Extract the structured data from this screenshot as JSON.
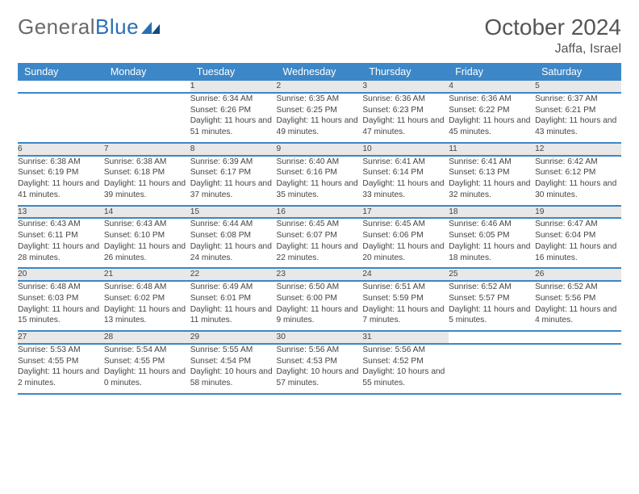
{
  "brand": {
    "part1": "General",
    "part2": "Blue"
  },
  "title": "October 2024",
  "location": "Jaffa, Israel",
  "colors": {
    "header_bg": "#3c87c7",
    "header_text": "#ffffff",
    "daynum_bg": "#e8e8e8",
    "rule": "#3c87c7",
    "brand_gray": "#6a6a6a",
    "brand_blue": "#2a6fb5"
  },
  "weekdays": [
    "Sunday",
    "Monday",
    "Tuesday",
    "Wednesday",
    "Thursday",
    "Friday",
    "Saturday"
  ],
  "weeks": [
    {
      "days": [
        {
          "n": "",
          "sunrise": "",
          "sunset": "",
          "daylight": ""
        },
        {
          "n": "",
          "sunrise": "",
          "sunset": "",
          "daylight": ""
        },
        {
          "n": "1",
          "sunrise": "Sunrise: 6:34 AM",
          "sunset": "Sunset: 6:26 PM",
          "daylight": "Daylight: 11 hours and 51 minutes."
        },
        {
          "n": "2",
          "sunrise": "Sunrise: 6:35 AM",
          "sunset": "Sunset: 6:25 PM",
          "daylight": "Daylight: 11 hours and 49 minutes."
        },
        {
          "n": "3",
          "sunrise": "Sunrise: 6:36 AM",
          "sunset": "Sunset: 6:23 PM",
          "daylight": "Daylight: 11 hours and 47 minutes."
        },
        {
          "n": "4",
          "sunrise": "Sunrise: 6:36 AM",
          "sunset": "Sunset: 6:22 PM",
          "daylight": "Daylight: 11 hours and 45 minutes."
        },
        {
          "n": "5",
          "sunrise": "Sunrise: 6:37 AM",
          "sunset": "Sunset: 6:21 PM",
          "daylight": "Daylight: 11 hours and 43 minutes."
        }
      ]
    },
    {
      "days": [
        {
          "n": "6",
          "sunrise": "Sunrise: 6:38 AM",
          "sunset": "Sunset: 6:19 PM",
          "daylight": "Daylight: 11 hours and 41 minutes."
        },
        {
          "n": "7",
          "sunrise": "Sunrise: 6:38 AM",
          "sunset": "Sunset: 6:18 PM",
          "daylight": "Daylight: 11 hours and 39 minutes."
        },
        {
          "n": "8",
          "sunrise": "Sunrise: 6:39 AM",
          "sunset": "Sunset: 6:17 PM",
          "daylight": "Daylight: 11 hours and 37 minutes."
        },
        {
          "n": "9",
          "sunrise": "Sunrise: 6:40 AM",
          "sunset": "Sunset: 6:16 PM",
          "daylight": "Daylight: 11 hours and 35 minutes."
        },
        {
          "n": "10",
          "sunrise": "Sunrise: 6:41 AM",
          "sunset": "Sunset: 6:14 PM",
          "daylight": "Daylight: 11 hours and 33 minutes."
        },
        {
          "n": "11",
          "sunrise": "Sunrise: 6:41 AM",
          "sunset": "Sunset: 6:13 PM",
          "daylight": "Daylight: 11 hours and 32 minutes."
        },
        {
          "n": "12",
          "sunrise": "Sunrise: 6:42 AM",
          "sunset": "Sunset: 6:12 PM",
          "daylight": "Daylight: 11 hours and 30 minutes."
        }
      ]
    },
    {
      "days": [
        {
          "n": "13",
          "sunrise": "Sunrise: 6:43 AM",
          "sunset": "Sunset: 6:11 PM",
          "daylight": "Daylight: 11 hours and 28 minutes."
        },
        {
          "n": "14",
          "sunrise": "Sunrise: 6:43 AM",
          "sunset": "Sunset: 6:10 PM",
          "daylight": "Daylight: 11 hours and 26 minutes."
        },
        {
          "n": "15",
          "sunrise": "Sunrise: 6:44 AM",
          "sunset": "Sunset: 6:08 PM",
          "daylight": "Daylight: 11 hours and 24 minutes."
        },
        {
          "n": "16",
          "sunrise": "Sunrise: 6:45 AM",
          "sunset": "Sunset: 6:07 PM",
          "daylight": "Daylight: 11 hours and 22 minutes."
        },
        {
          "n": "17",
          "sunrise": "Sunrise: 6:45 AM",
          "sunset": "Sunset: 6:06 PM",
          "daylight": "Daylight: 11 hours and 20 minutes."
        },
        {
          "n": "18",
          "sunrise": "Sunrise: 6:46 AM",
          "sunset": "Sunset: 6:05 PM",
          "daylight": "Daylight: 11 hours and 18 minutes."
        },
        {
          "n": "19",
          "sunrise": "Sunrise: 6:47 AM",
          "sunset": "Sunset: 6:04 PM",
          "daylight": "Daylight: 11 hours and 16 minutes."
        }
      ]
    },
    {
      "days": [
        {
          "n": "20",
          "sunrise": "Sunrise: 6:48 AM",
          "sunset": "Sunset: 6:03 PM",
          "daylight": "Daylight: 11 hours and 15 minutes."
        },
        {
          "n": "21",
          "sunrise": "Sunrise: 6:48 AM",
          "sunset": "Sunset: 6:02 PM",
          "daylight": "Daylight: 11 hours and 13 minutes."
        },
        {
          "n": "22",
          "sunrise": "Sunrise: 6:49 AM",
          "sunset": "Sunset: 6:01 PM",
          "daylight": "Daylight: 11 hours and 11 minutes."
        },
        {
          "n": "23",
          "sunrise": "Sunrise: 6:50 AM",
          "sunset": "Sunset: 6:00 PM",
          "daylight": "Daylight: 11 hours and 9 minutes."
        },
        {
          "n": "24",
          "sunrise": "Sunrise: 6:51 AM",
          "sunset": "Sunset: 5:59 PM",
          "daylight": "Daylight: 11 hours and 7 minutes."
        },
        {
          "n": "25",
          "sunrise": "Sunrise: 6:52 AM",
          "sunset": "Sunset: 5:57 PM",
          "daylight": "Daylight: 11 hours and 5 minutes."
        },
        {
          "n": "26",
          "sunrise": "Sunrise: 6:52 AM",
          "sunset": "Sunset: 5:56 PM",
          "daylight": "Daylight: 11 hours and 4 minutes."
        }
      ]
    },
    {
      "days": [
        {
          "n": "27",
          "sunrise": "Sunrise: 5:53 AM",
          "sunset": "Sunset: 4:55 PM",
          "daylight": "Daylight: 11 hours and 2 minutes."
        },
        {
          "n": "28",
          "sunrise": "Sunrise: 5:54 AM",
          "sunset": "Sunset: 4:55 PM",
          "daylight": "Daylight: 11 hours and 0 minutes."
        },
        {
          "n": "29",
          "sunrise": "Sunrise: 5:55 AM",
          "sunset": "Sunset: 4:54 PM",
          "daylight": "Daylight: 10 hours and 58 minutes."
        },
        {
          "n": "30",
          "sunrise": "Sunrise: 5:56 AM",
          "sunset": "Sunset: 4:53 PM",
          "daylight": "Daylight: 10 hours and 57 minutes."
        },
        {
          "n": "31",
          "sunrise": "Sunrise: 5:56 AM",
          "sunset": "Sunset: 4:52 PM",
          "daylight": "Daylight: 10 hours and 55 minutes."
        },
        {
          "n": "",
          "sunrise": "",
          "sunset": "",
          "daylight": ""
        },
        {
          "n": "",
          "sunrise": "",
          "sunset": "",
          "daylight": ""
        }
      ]
    }
  ]
}
